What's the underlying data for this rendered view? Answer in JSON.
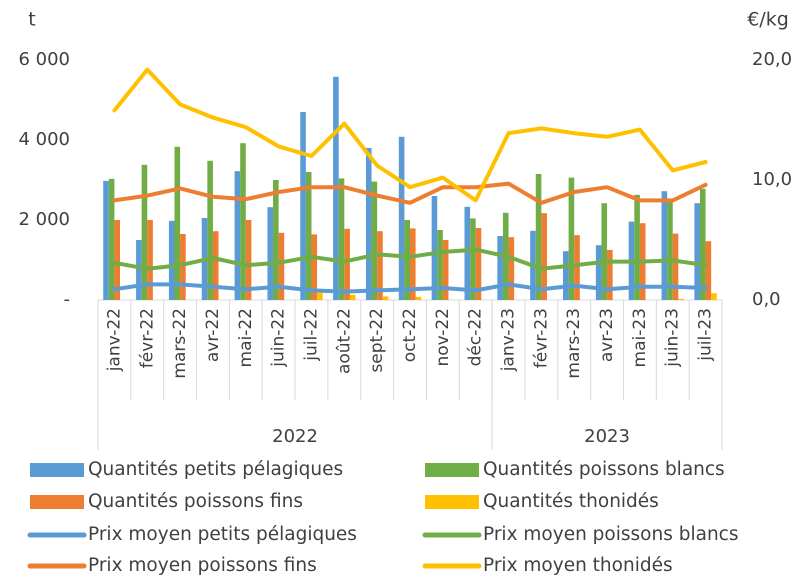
{
  "chart_data": {
    "type": "bar",
    "ylabel": "t",
    "y2label": "€/kg",
    "categories": [
      "janv-22",
      "févr-22",
      "mars-22",
      "avr-22",
      "mai-22",
      "juin-22",
      "juil-22",
      "août-22",
      "sept-22",
      "oct-22",
      "nov-22",
      "déc-22",
      "janv-23",
      "févr-23",
      "mars-23",
      "avr-23",
      "mai-23",
      "juin-23",
      "juil-23"
    ],
    "groups": [
      {
        "label": "2022",
        "count": 12
      },
      {
        "label": "2023",
        "count": 7
      }
    ],
    "ylim": [
      0,
      6000
    ],
    "yticks": [
      {
        "value": 0,
        "label": "-"
      },
      {
        "value": 2000,
        "label": "2 000"
      },
      {
        "value": 4000,
        "label": "4 000"
      },
      {
        "value": 6000,
        "label": "6 000"
      }
    ],
    "y2lim": [
      0,
      20
    ],
    "y2ticks": [
      {
        "value": 0,
        "label": "0,0"
      },
      {
        "value": 10,
        "label": "10,0"
      },
      {
        "value": 20,
        "label": "20,0"
      }
    ],
    "legend": "bottom",
    "series": [
      {
        "name": "Quantités petits pélagiques",
        "type": "bar",
        "color": "#5b9bd5",
        "values": [
          2980,
          1500,
          1980,
          2050,
          3220,
          2320,
          4700,
          5580,
          3800,
          4080,
          2600,
          2330,
          1600,
          1730,
          1220,
          1370,
          1960,
          2720,
          2420
        ]
      },
      {
        "name": "Quantités poissons blancs",
        "type": "bar",
        "color": "#70ad47",
        "values": [
          3030,
          3380,
          3830,
          3480,
          3920,
          3000,
          3200,
          3040,
          2960,
          2000,
          1750,
          2040,
          2180,
          3150,
          3060,
          2420,
          2630,
          2510,
          2780
        ]
      },
      {
        "name": "Quantités poissons fins",
        "type": "bar",
        "color": "#ed7d31",
        "values": [
          2000,
          2000,
          1650,
          1720,
          2000,
          1680,
          1640,
          1780,
          1720,
          1790,
          1500,
          1800,
          1570,
          2170,
          1620,
          1250,
          1920,
          1660,
          1470
        ]
      },
      {
        "name": "Quantités thonidés",
        "type": "bar",
        "color": "#ffc000",
        "values": [
          0,
          0,
          0,
          0,
          0,
          0,
          180,
          130,
          90,
          80,
          0,
          0,
          0,
          0,
          0,
          0,
          0,
          30,
          170
        ]
      },
      {
        "name": "Prix moyen petits pélagiques",
        "type": "line",
        "axis": "y2",
        "color": "#5b9bd5",
        "values": [
          0.9,
          1.3,
          1.3,
          1.1,
          0.9,
          1.1,
          0.8,
          0.7,
          0.8,
          0.9,
          1.0,
          0.8,
          1.3,
          0.9,
          1.2,
          0.9,
          1.1,
          1.1,
          1.0
        ]
      },
      {
        "name": "Prix moyen poissons blancs",
        "type": "line",
        "axis": "y2",
        "color": "#70ad47",
        "values": [
          3.1,
          2.6,
          2.9,
          3.5,
          2.9,
          3.1,
          3.6,
          3.2,
          3.8,
          3.6,
          4.0,
          4.2,
          3.6,
          2.6,
          2.9,
          3.2,
          3.2,
          3.3,
          2.9
        ]
      },
      {
        "name": "Prix moyen poissons fins",
        "type": "line",
        "axis": "y2",
        "color": "#ed7d31",
        "values": [
          8.3,
          8.7,
          9.3,
          8.6,
          8.4,
          9.0,
          9.4,
          9.4,
          8.7,
          8.1,
          9.4,
          9.4,
          9.7,
          8.1,
          9.0,
          9.4,
          8.3,
          8.3,
          9.6
        ]
      },
      {
        "name": "Prix moyen thonidés",
        "type": "line",
        "axis": "y2",
        "color": "#ffc000",
        "values": [
          15.8,
          19.2,
          16.3,
          15.2,
          14.4,
          12.8,
          12.0,
          14.7,
          11.2,
          9.4,
          10.2,
          8.3,
          13.9,
          14.3,
          13.9,
          13.6,
          14.2,
          10.8,
          11.5
        ]
      }
    ]
  }
}
